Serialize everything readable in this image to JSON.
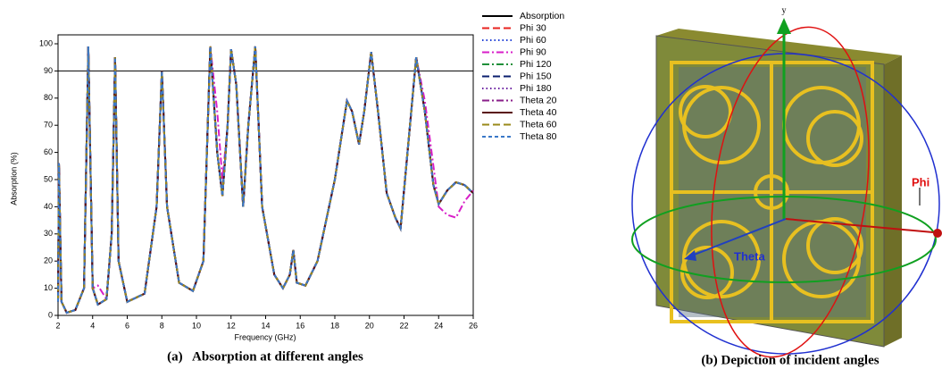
{
  "chart_data": {
    "type": "line",
    "x_label": "Frequency (GHz)",
    "y_label": "Absorption (%)",
    "caption": "(a)   Absorption at different angles",
    "xlim": [
      2,
      26
    ],
    "xticks": [
      2,
      4,
      6,
      8,
      10,
      12,
      14,
      16,
      18,
      20,
      22,
      24,
      26
    ],
    "ylim": [
      0,
      100
    ],
    "yticks": [
      0,
      10,
      20,
      30,
      40,
      50,
      60,
      70,
      80,
      90,
      100
    ],
    "hline": 90,
    "legend": "right",
    "x": [
      2,
      2.05,
      2.2,
      2.5,
      3,
      3.5,
      3.75,
      4,
      4.3,
      4.8,
      5.1,
      5.3,
      5.5,
      6,
      7,
      7.7,
      8,
      8.3,
      9,
      9.8,
      10.4,
      10.8,
      11.2,
      11.5,
      11.8,
      12,
      12.3,
      12.7,
      13,
      13.4,
      13.8,
      14.5,
      15,
      15.4,
      15.6,
      15.8,
      16.3,
      17,
      18,
      18.7,
      19,
      19.4,
      19.7,
      20.1,
      20.5,
      21,
      21.5,
      21.8,
      22.2,
      22.7,
      23.2,
      23.7,
      24,
      24.5,
      25,
      25.5,
      26
    ],
    "series": [
      {
        "name": "Absorption",
        "color": "#000000",
        "dash": "solid",
        "values": [
          5,
          56,
          5,
          1,
          2,
          10,
          99,
          10,
          4,
          6,
          30,
          95,
          20,
          5,
          8,
          40,
          90,
          40,
          12,
          9,
          20,
          99,
          60,
          44,
          70,
          98,
          85,
          40,
          70,
          99,
          40,
          15,
          10,
          15,
          24,
          12,
          11,
          20,
          50,
          79,
          75,
          63,
          75,
          97,
          75,
          45,
          36,
          32,
          60,
          95,
          75,
          48,
          41,
          46,
          49,
          48,
          45
        ]
      },
      {
        "name": "Phi 30",
        "color": "#e8231f",
        "dash": "dash",
        "values": [
          5,
          56,
          5,
          1,
          2,
          10,
          99,
          10,
          4,
          6,
          30,
          95,
          20,
          5,
          8,
          40,
          90,
          40,
          12,
          9,
          20,
          99,
          60,
          44,
          70,
          98,
          85,
          40,
          70,
          99,
          40,
          15,
          10,
          15,
          24,
          12,
          11,
          20,
          50,
          79,
          75,
          63,
          75,
          97,
          75,
          45,
          36,
          32,
          60,
          95,
          75,
          48,
          41,
          46,
          49,
          48,
          45
        ]
      },
      {
        "name": "Phi 60",
        "color": "#1f3fd6",
        "dash": "dot",
        "values": [
          5,
          56,
          5,
          1,
          2,
          10,
          99,
          10,
          4,
          6,
          30,
          95,
          20,
          5,
          8,
          40,
          90,
          40,
          12,
          9,
          20,
          99,
          60,
          44,
          70,
          98,
          85,
          40,
          70,
          99,
          40,
          15,
          10,
          15,
          24,
          12,
          11,
          20,
          50,
          79,
          75,
          63,
          75,
          97,
          75,
          45,
          36,
          32,
          60,
          95,
          75,
          48,
          41,
          46,
          49,
          48,
          45
        ]
      },
      {
        "name": "Phi 90",
        "color": "#d81fc8",
        "dash": "dashdot",
        "values": [
          5,
          56,
          5,
          1,
          2,
          10,
          99,
          10,
          11,
          6,
          30,
          95,
          20,
          5,
          8,
          40,
          90,
          40,
          12,
          9,
          20,
          99,
          75,
          50,
          70,
          98,
          85,
          40,
          70,
          99,
          40,
          15,
          10,
          15,
          24,
          12,
          11,
          20,
          50,
          79,
          75,
          63,
          75,
          97,
          75,
          45,
          36,
          32,
          60,
          95,
          79,
          55,
          40,
          37,
          36,
          42,
          46
        ]
      },
      {
        "name": "Phi 120",
        "color": "#1f8f3a",
        "dash": "dashdot",
        "values": [
          5,
          56,
          5,
          1,
          2,
          10,
          99,
          10,
          4,
          6,
          30,
          95,
          20,
          5,
          8,
          40,
          90,
          40,
          12,
          9,
          20,
          99,
          60,
          44,
          70,
          98,
          85,
          40,
          70,
          99,
          40,
          15,
          10,
          15,
          24,
          12,
          11,
          20,
          50,
          79,
          75,
          63,
          75,
          97,
          75,
          45,
          36,
          32,
          60,
          95,
          75,
          48,
          41,
          46,
          49,
          48,
          45
        ]
      },
      {
        "name": "Phi 150",
        "color": "#0b1f6e",
        "dash": "dash",
        "values": [
          5,
          56,
          5,
          1,
          2,
          10,
          99,
          10,
          4,
          6,
          30,
          95,
          20,
          5,
          8,
          40,
          90,
          40,
          12,
          9,
          20,
          99,
          60,
          44,
          70,
          98,
          85,
          40,
          70,
          99,
          40,
          15,
          10,
          15,
          24,
          12,
          11,
          20,
          50,
          79,
          75,
          63,
          75,
          97,
          75,
          45,
          36,
          32,
          60,
          95,
          75,
          48,
          41,
          46,
          49,
          48,
          45
        ]
      },
      {
        "name": "Phi 180",
        "color": "#6a1fa0",
        "dash": "dot",
        "values": [
          5,
          56,
          5,
          1,
          2,
          10,
          99,
          10,
          4,
          6,
          30,
          95,
          20,
          5,
          8,
          40,
          90,
          40,
          12,
          9,
          20,
          99,
          60,
          44,
          70,
          98,
          85,
          40,
          70,
          99,
          40,
          15,
          10,
          15,
          24,
          12,
          11,
          20,
          50,
          79,
          75,
          63,
          75,
          97,
          75,
          45,
          36,
          32,
          60,
          95,
          75,
          48,
          41,
          46,
          49,
          48,
          45
        ]
      },
      {
        "name": "Theta 20",
        "color": "#8a1f8a",
        "dash": "dashdot",
        "values": [
          5,
          56,
          5,
          1,
          2,
          10,
          99,
          10,
          4,
          6,
          30,
          95,
          20,
          5,
          8,
          40,
          90,
          40,
          12,
          9,
          20,
          99,
          60,
          44,
          70,
          98,
          85,
          40,
          70,
          99,
          40,
          15,
          10,
          15,
          24,
          12,
          11,
          20,
          50,
          79,
          75,
          63,
          75,
          97,
          75,
          45,
          36,
          32,
          60,
          95,
          75,
          48,
          41,
          46,
          49,
          48,
          45
        ]
      },
      {
        "name": "Theta 40",
        "color": "#5a1010",
        "dash": "solid",
        "values": [
          5,
          56,
          5,
          1,
          2,
          10,
          99,
          10,
          4,
          6,
          30,
          95,
          20,
          5,
          8,
          40,
          90,
          40,
          12,
          9,
          20,
          99,
          60,
          44,
          70,
          98,
          85,
          40,
          70,
          99,
          40,
          15,
          10,
          15,
          24,
          12,
          11,
          20,
          50,
          79,
          75,
          63,
          75,
          97,
          75,
          45,
          36,
          32,
          60,
          95,
          75,
          48,
          41,
          46,
          49,
          48,
          45
        ]
      },
      {
        "name": "Theta 60",
        "color": "#9a8a1a",
        "dash": "dash",
        "values": [
          5,
          56,
          5,
          1,
          2,
          10,
          99,
          10,
          4,
          6,
          30,
          95,
          20,
          5,
          8,
          40,
          90,
          40,
          12,
          9,
          20,
          99,
          60,
          44,
          70,
          98,
          85,
          40,
          70,
          99,
          40,
          15,
          10,
          15,
          24,
          12,
          11,
          20,
          50,
          79,
          75,
          63,
          75,
          97,
          75,
          45,
          36,
          32,
          60,
          95,
          75,
          48,
          41,
          46,
          49,
          48,
          45
        ]
      },
      {
        "name": "Theta 80",
        "color": "#3a78c8",
        "dash": "shortdash",
        "values": [
          5,
          56,
          5,
          1,
          2,
          10,
          99,
          10,
          4,
          6,
          30,
          95,
          20,
          5,
          8,
          40,
          90,
          40,
          12,
          9,
          20,
          99,
          60,
          44,
          70,
          98,
          85,
          40,
          70,
          99,
          40,
          15,
          10,
          15,
          24,
          12,
          11,
          20,
          50,
          79,
          75,
          63,
          75,
          97,
          75,
          45,
          36,
          32,
          60,
          95,
          75,
          48,
          41,
          46,
          49,
          48,
          45
        ]
      }
    ]
  },
  "figure_b": {
    "axis_label": "y",
    "phi_label": "Phi",
    "theta_label": "Theta",
    "caption": "(b) Depiction of incident angles"
  }
}
